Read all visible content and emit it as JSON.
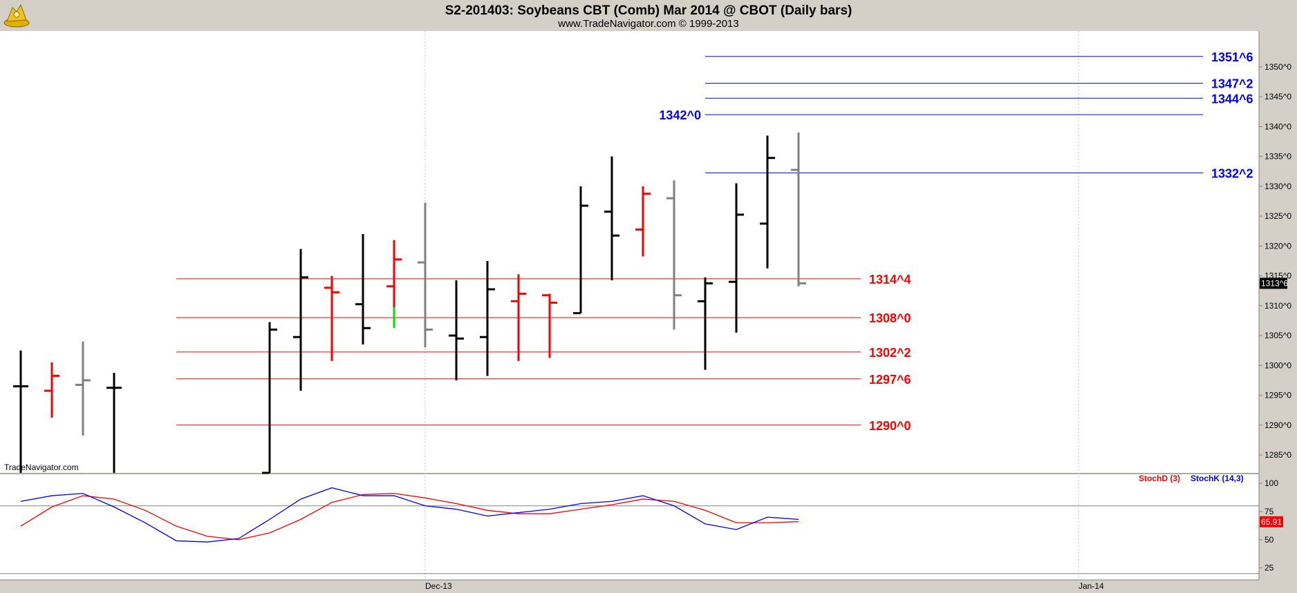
{
  "header": {
    "title": "S2-201403:  Soybeans CBT (Comb) Mar 2014 @ CBOT  (Daily bars)",
    "subtitle": "www.TradeNavigator.com © 1999-2013",
    "watermark": "TradeNavigator.com"
  },
  "colors": {
    "background": "#ffffff",
    "frame": "#d4d0c8",
    "bar_black": "#000000",
    "bar_red": "#ff0000",
    "bar_gray": "#808080",
    "bar_green": "#00e000",
    "level_red": "#ff0000",
    "level_blue": "#0000ff",
    "stoch_d": "#ff0000",
    "stoch_k": "#0000ff"
  },
  "chart_data": [
    {
      "type": "ohlc",
      "name": "price",
      "ylim": [
        1282,
        1356
      ],
      "y_ticks": [
        {
          "v": 1285,
          "label": "1285^0"
        },
        {
          "v": 1290,
          "label": "1290^0"
        },
        {
          "v": 1295,
          "label": "1295^0"
        },
        {
          "v": 1300,
          "label": "1300^0"
        },
        {
          "v": 1305,
          "label": "1305^0"
        },
        {
          "v": 1310,
          "label": "1310^0"
        },
        {
          "v": 1315,
          "label": "1315^0"
        },
        {
          "v": 1320,
          "label": "1320^0"
        },
        {
          "v": 1325,
          "label": "1325^0"
        },
        {
          "v": 1330,
          "label": "1330^0"
        },
        {
          "v": 1335,
          "label": "1335^0"
        },
        {
          "v": 1340,
          "label": "1340^0"
        },
        {
          "v": 1345,
          "label": "1345^0"
        },
        {
          "v": 1350,
          "label": "1350^0"
        }
      ],
      "x_labels": [
        {
          "label": "Dec-13",
          "bar": 13.0
        },
        {
          "label": "Jan-14",
          "bar": 34.0
        }
      ],
      "last_price": {
        "value": 1313.75,
        "label": "1313^6"
      },
      "bars": [
        {
          "o": 1296.5,
          "h": 1302.5,
          "l": 1282,
          "c": 1296.5,
          "color": "black"
        },
        {
          "o": 1295.75,
          "h": 1300.5,
          "l": 1291.25,
          "c": 1298.25,
          "color": "red"
        },
        {
          "o": 1296.75,
          "h": 1304.0,
          "l": 1288.25,
          "c": 1297.5,
          "color": "gray"
        },
        {
          "o": 1296.25,
          "h": 1298.75,
          "l": 1282,
          "c": 1296.25,
          "color": "black"
        },
        null,
        null,
        null,
        null,
        {
          "o": 1282,
          "h": 1307.25,
          "l": 1282,
          "c": 1306.0,
          "color": "black"
        },
        {
          "o": 1304.75,
          "h": 1319.5,
          "l": 1295.75,
          "c": 1314.75,
          "color": "black"
        },
        {
          "o": 1313.0,
          "h": 1315.0,
          "l": 1300.75,
          "c": 1312.25,
          "color": "red"
        },
        {
          "o": 1310.25,
          "h": 1322.0,
          "l": 1303.5,
          "c": 1306.25,
          "color": "black"
        },
        {
          "o": 1313.25,
          "h": 1321.0,
          "l": 1306.25,
          "c": 1317.75,
          "color": "red",
          "tail_color": "green",
          "tail_from": 1309.75
        },
        {
          "o": 1317.25,
          "h": 1327.25,
          "l": 1303.0,
          "c": 1306.0,
          "color": "gray"
        },
        {
          "o": 1305.0,
          "h": 1314.25,
          "l": 1297.5,
          "c": 1304.5,
          "color": "black"
        },
        {
          "o": 1304.75,
          "h": 1317.5,
          "l": 1298.25,
          "c": 1312.75,
          "color": "black"
        },
        {
          "o": 1310.75,
          "h": 1315.25,
          "l": 1300.75,
          "c": 1312.0,
          "color": "red"
        },
        {
          "o": 1311.75,
          "h": 1312.0,
          "l": 1301.25,
          "c": 1310.5,
          "color": "red"
        },
        {
          "o": 1308.75,
          "h": 1330.0,
          "l": 1308.75,
          "c": 1326.75,
          "color": "black"
        },
        {
          "o": 1325.75,
          "h": 1335.0,
          "l": 1314.25,
          "c": 1321.75,
          "color": "black"
        },
        {
          "o": 1322.75,
          "h": 1330.0,
          "l": 1318.25,
          "c": 1328.75,
          "color": "red"
        },
        {
          "o": 1328.0,
          "h": 1331.0,
          "l": 1306.0,
          "c": 1311.75,
          "color": "gray"
        },
        {
          "o": 1310.75,
          "h": 1314.75,
          "l": 1299.25,
          "c": 1313.75,
          "color": "black"
        },
        {
          "o": 1314.0,
          "h": 1330.5,
          "l": 1305.5,
          "c": 1325.25,
          "color": "black"
        },
        {
          "o": 1323.75,
          "h": 1338.5,
          "l": 1316.25,
          "c": 1334.75,
          "color": "black"
        },
        {
          "o": 1332.75,
          "h": 1339.0,
          "l": 1313.25,
          "c": 1313.75,
          "color": "gray"
        }
      ],
      "levels": [
        {
          "value": 1314.5,
          "label": "1314^4",
          "color": "red",
          "x_from": 5.0,
          "x_to": 27.0,
          "label_side": "right"
        },
        {
          "value": 1308.0,
          "label": "1308^0",
          "color": "red",
          "x_from": 5.0,
          "x_to": 27.0,
          "label_side": "right"
        },
        {
          "value": 1302.25,
          "label": "1302^2",
          "color": "red",
          "x_from": 5.0,
          "x_to": 27.0,
          "label_side": "right"
        },
        {
          "value": 1297.75,
          "label": "1297^6",
          "color": "red",
          "x_from": 5.0,
          "x_to": 27.0,
          "label_side": "right"
        },
        {
          "value": 1290.0,
          "label": "1290^0",
          "color": "red",
          "x_from": 5.0,
          "x_to": 27.0,
          "label_side": "right"
        },
        {
          "value": 1351.75,
          "label": "1351^6",
          "color": "blue",
          "x_from": 22.0,
          "x_to": 38.0,
          "label_side": "right"
        },
        {
          "value": 1347.25,
          "label": "1347^2",
          "color": "blue",
          "x_from": 22.0,
          "x_to": 38.0,
          "label_side": "right"
        },
        {
          "value": 1344.75,
          "label": "1344^6",
          "color": "blue",
          "x_from": 22.0,
          "x_to": 38.0,
          "label_side": "right"
        },
        {
          "value": 1342.0,
          "label": "1342^0",
          "color": "blue",
          "x_from": 22.0,
          "x_to": 38.0,
          "label_side": "left"
        },
        {
          "value": 1332.25,
          "label": "1332^2",
          "color": "blue",
          "x_from": 22.0,
          "x_to": 38.0,
          "label_side": "right"
        }
      ]
    },
    {
      "type": "line",
      "name": "stochastic",
      "ylim": [
        15,
        108
      ],
      "y_ticks": [
        {
          "v": 25,
          "label": "25"
        },
        {
          "v": 50,
          "label": "50"
        },
        {
          "v": 75,
          "label": "75"
        },
        {
          "v": 100,
          "label": "100"
        }
      ],
      "ref_lines": [
        80,
        20
      ],
      "legend": [
        {
          "label": "StochD (3)",
          "color": "red"
        },
        {
          "label": "StochK (14,3)",
          "color": "blue"
        }
      ],
      "last_value": {
        "value": 65.91,
        "label": "65.91"
      },
      "series": [
        {
          "name": "StochK (14,3)",
          "color": "blue",
          "points": [
            [
              0,
              84
            ],
            [
              1,
              89
            ],
            [
              2,
              91
            ],
            [
              3,
              79
            ],
            [
              4,
              65
            ],
            [
              5,
              49
            ],
            [
              6,
              48
            ],
            [
              7,
              51
            ],
            [
              8,
              68
            ],
            [
              9,
              86
            ],
            [
              10,
              96
            ],
            [
              11,
              89
            ],
            [
              12,
              89
            ],
            [
              13,
              80
            ],
            [
              14,
              77
            ],
            [
              15,
              71
            ],
            [
              16,
              74
            ],
            [
              17,
              77
            ],
            [
              18,
              82
            ],
            [
              19,
              84
            ],
            [
              20,
              89
            ],
            [
              21,
              80
            ],
            [
              22,
              64
            ],
            [
              23,
              59
            ],
            [
              24,
              70
            ],
            [
              25,
              68
            ]
          ]
        },
        {
          "name": "StochD (3)",
          "color": "red",
          "points": [
            [
              0,
              62
            ],
            [
              1,
              79
            ],
            [
              2,
              89
            ],
            [
              3,
              86
            ],
            [
              4,
              76
            ],
            [
              5,
              62
            ],
            [
              6,
              53
            ],
            [
              7,
              50
            ],
            [
              8,
              56
            ],
            [
              9,
              68
            ],
            [
              10,
              83
            ],
            [
              11,
              90
            ],
            [
              12,
              91
            ],
            [
              13,
              87
            ],
            [
              14,
              82
            ],
            [
              15,
              76
            ],
            [
              16,
              73
            ],
            [
              17,
              73
            ],
            [
              18,
              77
            ],
            [
              19,
              81
            ],
            [
              20,
              86
            ],
            [
              21,
              84
            ],
            [
              22,
              76
            ],
            [
              23,
              65
            ],
            [
              24,
              65
            ],
            [
              25,
              66
            ]
          ]
        }
      ]
    }
  ]
}
